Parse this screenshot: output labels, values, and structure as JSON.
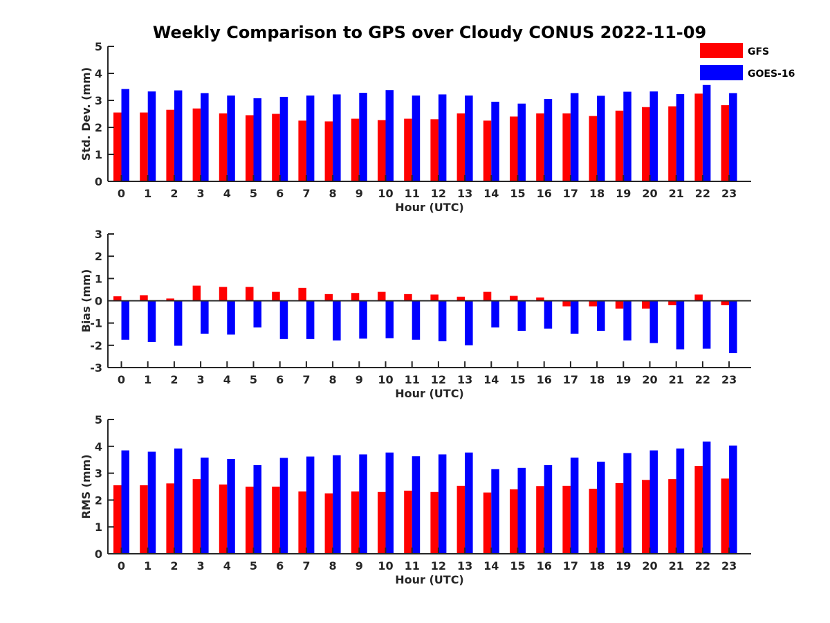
{
  "figure": {
    "title": "Weekly Comparison to GPS over Cloudy CONUS 2022-11-09"
  },
  "legend": {
    "placement": "top-right",
    "entries": [
      {
        "name": "GFS",
        "color": "#ff0000"
      },
      {
        "name": "GOES-16",
        "color": "#0000ff"
      }
    ]
  },
  "chart_data": [
    {
      "type": "bar",
      "xlabel": "Hour (UTC)",
      "ylabel": "Std. Dev. (mm)",
      "ylim": [
        0,
        5
      ],
      "yticks": [
        0,
        1,
        2,
        3,
        4,
        5
      ],
      "grid": false,
      "categories": [
        "0",
        "1",
        "2",
        "3",
        "4",
        "5",
        "6",
        "7",
        "8",
        "9",
        "10",
        "11",
        "12",
        "13",
        "14",
        "15",
        "16",
        "17",
        "18",
        "19",
        "20",
        "21",
        "22",
        "23"
      ],
      "series": [
        {
          "name": "GFS",
          "color": "#ff0000",
          "values": [
            2.55,
            2.55,
            2.65,
            2.7,
            2.52,
            2.45,
            2.5,
            2.25,
            2.22,
            2.32,
            2.27,
            2.32,
            2.3,
            2.52,
            2.25,
            2.4,
            2.52,
            2.52,
            2.42,
            2.62,
            2.75,
            2.78,
            3.25,
            2.82
          ]
        },
        {
          "name": "GOES-16",
          "color": "#0000ff",
          "values": [
            3.42,
            3.33,
            3.37,
            3.27,
            3.18,
            3.08,
            3.13,
            3.18,
            3.22,
            3.28,
            3.38,
            3.18,
            3.22,
            3.18,
            2.95,
            2.88,
            3.05,
            3.27,
            3.17,
            3.32,
            3.33,
            3.23,
            3.57,
            3.27
          ]
        }
      ]
    },
    {
      "type": "bar",
      "xlabel": "Hour (UTC)",
      "ylabel": "Bias (mm)",
      "ylim": [
        -3,
        3
      ],
      "yticks": [
        -3,
        -2,
        -1,
        0,
        1,
        2,
        3
      ],
      "grid": false,
      "categories": [
        "0",
        "1",
        "2",
        "3",
        "4",
        "5",
        "6",
        "7",
        "8",
        "9",
        "10",
        "11",
        "12",
        "13",
        "14",
        "15",
        "16",
        "17",
        "18",
        "19",
        "20",
        "21",
        "22",
        "23"
      ],
      "series": [
        {
          "name": "GFS",
          "color": "#ff0000",
          "values": [
            0.2,
            0.25,
            0.1,
            0.68,
            0.62,
            0.62,
            0.4,
            0.58,
            0.3,
            0.35,
            0.4,
            0.3,
            0.28,
            0.18,
            0.4,
            0.22,
            0.15,
            -0.25,
            -0.25,
            -0.35,
            -0.35,
            -0.2,
            0.28,
            -0.2
          ]
        },
        {
          "name": "GOES-16",
          "color": "#0000ff",
          "values": [
            -1.75,
            -1.85,
            -2.02,
            -1.48,
            -1.52,
            -1.2,
            -1.72,
            -1.72,
            -1.78,
            -1.7,
            -1.68,
            -1.75,
            -1.82,
            -2.0,
            -1.2,
            -1.35,
            -1.25,
            -1.48,
            -1.35,
            -1.78,
            -1.9,
            -2.18,
            -2.15,
            -2.35
          ]
        }
      ]
    },
    {
      "type": "bar",
      "xlabel": "Hour (UTC)",
      "ylabel": "RMS (mm)",
      "ylim": [
        0,
        5
      ],
      "yticks": [
        0,
        1,
        2,
        3,
        4,
        5
      ],
      "grid": false,
      "categories": [
        "0",
        "1",
        "2",
        "3",
        "4",
        "5",
        "6",
        "7",
        "8",
        "9",
        "10",
        "11",
        "12",
        "13",
        "14",
        "15",
        "16",
        "17",
        "18",
        "19",
        "20",
        "21",
        "22",
        "23"
      ],
      "series": [
        {
          "name": "GFS",
          "color": "#ff0000",
          "values": [
            2.55,
            2.55,
            2.62,
            2.78,
            2.58,
            2.5,
            2.5,
            2.32,
            2.25,
            2.32,
            2.3,
            2.35,
            2.3,
            2.53,
            2.28,
            2.4,
            2.52,
            2.53,
            2.42,
            2.63,
            2.75,
            2.78,
            3.27,
            2.8
          ]
        },
        {
          "name": "GOES-16",
          "color": "#0000ff",
          "values": [
            3.85,
            3.8,
            3.92,
            3.58,
            3.53,
            3.3,
            3.57,
            3.62,
            3.67,
            3.7,
            3.77,
            3.63,
            3.7,
            3.77,
            3.15,
            3.2,
            3.3,
            3.58,
            3.43,
            3.75,
            3.85,
            3.92,
            4.18,
            4.03
          ]
        }
      ]
    }
  ]
}
